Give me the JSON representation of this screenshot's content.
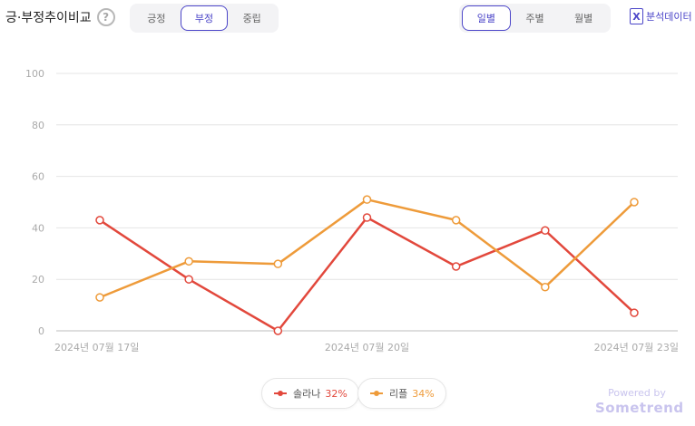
{
  "title": "긍·부정추이비교",
  "help_symbol": "?",
  "sentiment_tabs": [
    {
      "label": "긍정",
      "active": false
    },
    {
      "label": "부정",
      "active": true
    },
    {
      "label": "중립",
      "active": false
    }
  ],
  "period_tabs": [
    {
      "label": "일별",
      "active": true
    },
    {
      "label": "주별",
      "active": false
    },
    {
      "label": "월별",
      "active": false
    }
  ],
  "export_label": "분석데이터",
  "export_icon": "excel-icon",
  "legend": [
    {
      "name": "솔라나",
      "percent": "32%",
      "color": "#e2483c"
    },
    {
      "name": "리플",
      "percent": "34%",
      "color": "#ee9b3a"
    }
  ],
  "powered_by": {
    "line1": "Powered by",
    "line2": "Sometrend"
  },
  "chart_data": {
    "type": "line",
    "x": [
      "2024-07-17",
      "2024-07-18",
      "2024-07-19",
      "2024-07-20",
      "2024-07-21",
      "2024-07-22",
      "2024-07-23"
    ],
    "x_tick_labels": [
      "2024년 07월 17일",
      "2024년 07월 20일",
      "2024년 07월 23일"
    ],
    "x_tick_index": [
      0,
      3,
      6
    ],
    "series": [
      {
        "name": "솔라나",
        "color": "#e2483c",
        "values": [
          43,
          20,
          0,
          44,
          25,
          39,
          7
        ]
      },
      {
        "name": "리플",
        "color": "#ee9b3a",
        "values": [
          13,
          27,
          26,
          51,
          43,
          17,
          50
        ]
      }
    ],
    "ylim": [
      0,
      100
    ],
    "yticks": [
      0,
      20,
      40,
      60,
      80,
      100
    ],
    "grid": true,
    "legend_position": "bottom-center"
  }
}
